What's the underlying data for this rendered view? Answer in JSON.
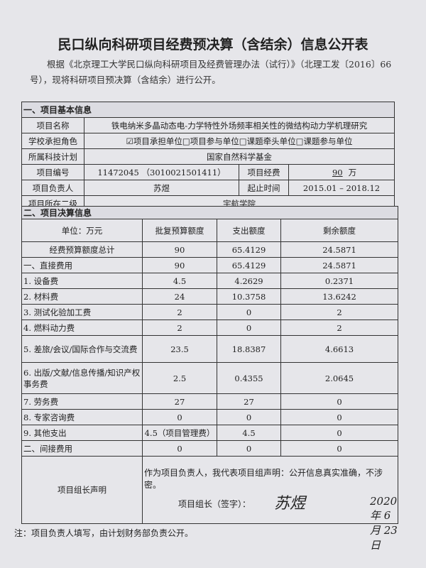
{
  "title": "民口纵向科研项目经费预决算（含结余）信息公开表",
  "intro": "根据《北京理工大学民口纵向科研项目及经费管理办法（试行）》（北理工发〔2016〕66号），现将科研项目预决算（含结余）进行公开。",
  "basic": {
    "section": "一、项目基本信息",
    "name_label": "项目名称",
    "name": "铁电纳米多晶动态电-力学特性外场频率相关性的微结构动力学机理研究",
    "role_label": "学校承担角色",
    "role": "☑项目承担单位□项目参与单位□课题牵头单位□课题参与单位",
    "plan_label": "所属科技计划",
    "plan": "国家自然科学基金",
    "code_label": "项目编号",
    "code": "11472045 （3010021501411）",
    "fund_label": "项目经费",
    "fund_value": "90",
    "fund_unit": "万",
    "leader_label": "项目负责人",
    "leader": "苏煜",
    "period_label": "起止时间",
    "period": "2015.01 – 2018.12",
    "dept_label": "项目所在二级",
    "dept": "宇航学院"
  },
  "budget": {
    "section": "二、项目决算信息",
    "headers": [
      "单位：万元",
      "批复预算额度",
      "支出额度",
      "剩余额度"
    ],
    "rows": [
      [
        "经费预算额度总计",
        "90",
        "65.4129",
        "24.5871"
      ],
      [
        "一、直接费用",
        "90",
        "65.4129",
        "24.5871"
      ],
      [
        "1. 设备费",
        "4.5",
        "4.2629",
        "0.2371"
      ],
      [
        "2. 材料费",
        "24",
        "10.3758",
        "13.6242"
      ],
      [
        "3. 测试化验加工费",
        "2",
        "0",
        "2"
      ],
      [
        "4. 燃料动力费",
        "2",
        "0",
        "2"
      ],
      [
        "5. 差旅/会议/国际合作与交流费",
        "23.5",
        "18.8387",
        "4.6613"
      ],
      [
        "6. 出版/文献/信息传播/知识产权事务费",
        "2.5",
        "0.4355",
        "2.0645"
      ],
      [
        "7. 劳务费",
        "27",
        "27",
        "0"
      ],
      [
        "8. 专家咨询费",
        "0",
        "0",
        "0"
      ],
      [
        "9. 其他支出",
        "4.5（项目管理费）",
        "4.5",
        "0"
      ],
      [
        "二、间接费用",
        "0",
        "0",
        "0"
      ]
    ]
  },
  "declaration": {
    "label": "项目组长声明",
    "text": "作为项目负责人，我代表项目组声明：公开信息真实准确，不涉密。",
    "sign_label": "项目组长（签字）：",
    "signature": "苏煜",
    "date": "2020 年 6 月 23 日"
  },
  "footnote": "注：项目负责人填写，由计划财务部负责公开。"
}
